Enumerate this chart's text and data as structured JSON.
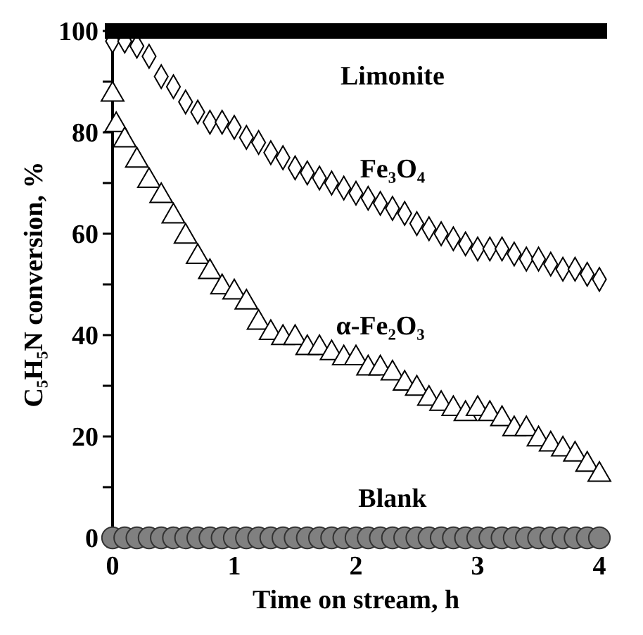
{
  "chart_data": {
    "type": "scatter",
    "xlabel": "Time on stream, h",
    "ylabel": "C₅H₅N conversion, %",
    "xlim": [
      0,
      4
    ],
    "ylim": [
      0,
      100
    ],
    "xticks": [
      0,
      1,
      2,
      3,
      4
    ],
    "yticks": [
      0,
      {
        "value": 10,
        "label": null
      },
      20,
      {
        "value": 30,
        "label": null
      },
      40,
      {
        "value": 50,
        "label": null
      },
      60,
      {
        "value": 70,
        "label": null
      },
      80,
      {
        "value": 90,
        "label": null
      },
      100
    ],
    "grid": false,
    "series": [
      {
        "name": "Limonite",
        "color": "#000000",
        "marker": "square",
        "x": [
          0,
          0.1,
          0.2,
          0.3,
          0.4,
          0.5,
          0.6,
          0.7,
          0.8,
          0.9,
          1,
          1.1,
          1.2,
          1.3,
          1.4,
          1.5,
          1.6,
          1.7,
          1.8,
          1.9,
          2,
          2.1,
          2.2,
          2.3,
          2.4,
          2.5,
          2.6,
          2.7,
          2.8,
          2.9,
          3,
          3.1,
          3.2,
          3.3,
          3.4,
          3.5,
          3.6,
          3.7,
          3.8,
          3.9,
          4
        ],
        "values": [
          100,
          100,
          100,
          100,
          100,
          100,
          100,
          100,
          100,
          100,
          100,
          100,
          100,
          100,
          100,
          100,
          100,
          100,
          100,
          100,
          100,
          100,
          100,
          100,
          100,
          100,
          100,
          100,
          100,
          100,
          100,
          100,
          100,
          100,
          100,
          100,
          100,
          100,
          100,
          100,
          100
        ]
      },
      {
        "name": "Fe₃O₄",
        "color": "#000000",
        "marker": "diamond",
        "x": [
          0,
          0.1,
          0.2,
          0.3,
          0.4,
          0.5,
          0.6,
          0.7,
          0.8,
          0.9,
          1,
          1.1,
          1.2,
          1.3,
          1.4,
          1.5,
          1.6,
          1.7,
          1.8,
          1.9,
          2,
          2.1,
          2.2,
          2.3,
          2.4,
          2.5,
          2.6,
          2.7,
          2.8,
          2.9,
          3,
          3.1,
          3.2,
          3.3,
          3.4,
          3.5,
          3.6,
          3.7,
          3.8,
          3.9,
          4
        ],
        "values": [
          98,
          98,
          97,
          95,
          91,
          89,
          86,
          84,
          82,
          82,
          81,
          79,
          78,
          76,
          75,
          73,
          72,
          71,
          70,
          69,
          68,
          67,
          66,
          65,
          64,
          62,
          61,
          60,
          59,
          58,
          57,
          57,
          57,
          56,
          55,
          55,
          54,
          53,
          53,
          52,
          51
        ]
      },
      {
        "name": "α-Fe₂O₃",
        "color": "#000000",
        "marker": "triangle",
        "x": [
          0,
          0.03,
          0.1,
          0.2,
          0.3,
          0.4,
          0.5,
          0.6,
          0.7,
          0.8,
          0.9,
          1,
          1.1,
          1.2,
          1.3,
          1.4,
          1.5,
          1.6,
          1.7,
          1.8,
          1.9,
          2,
          2.1,
          2.2,
          2.3,
          2.4,
          2.5,
          2.6,
          2.7,
          2.8,
          2.9,
          3,
          3.1,
          3.2,
          3.3,
          3.4,
          3.5,
          3.6,
          3.7,
          3.8,
          3.9,
          4
        ],
        "values": [
          88,
          82,
          79,
          75,
          71,
          68,
          64,
          60,
          56,
          53,
          50,
          49,
          47,
          43,
          41,
          40,
          40,
          38,
          38,
          37,
          36,
          36,
          34,
          34,
          33,
          31,
          30,
          28,
          27,
          26,
          25,
          26,
          25,
          24,
          22,
          22,
          20,
          19,
          18,
          17,
          15,
          13
        ]
      },
      {
        "name": "Blank",
        "color": "#808080",
        "marker": "circle",
        "x": [
          0,
          0.1,
          0.2,
          0.3,
          0.4,
          0.5,
          0.6,
          0.7,
          0.8,
          0.9,
          1,
          1.1,
          1.2,
          1.3,
          1.4,
          1.5,
          1.6,
          1.7,
          1.8,
          1.9,
          2,
          2.1,
          2.2,
          2.3,
          2.4,
          2.5,
          2.6,
          2.7,
          2.8,
          2.9,
          3,
          3.1,
          3.2,
          3.3,
          3.4,
          3.5,
          3.6,
          3.7,
          3.8,
          3.9,
          4
        ],
        "values": [
          0,
          0,
          0,
          0,
          0,
          0,
          0,
          0,
          0,
          0,
          0,
          0,
          0,
          0,
          0,
          0,
          0,
          0,
          0,
          0,
          0,
          0,
          0,
          0,
          0,
          0,
          0,
          0,
          0,
          0,
          0,
          0,
          0,
          0,
          0,
          0,
          0,
          0,
          0,
          0,
          0
        ]
      }
    ]
  }
}
